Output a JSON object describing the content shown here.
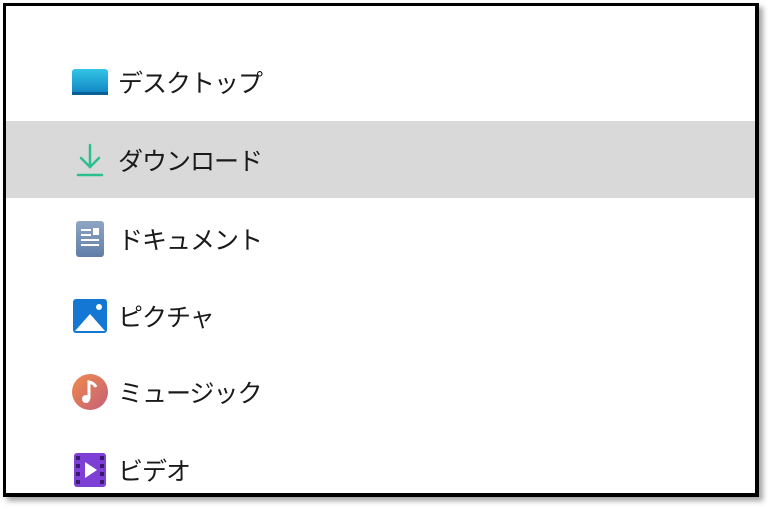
{
  "sidebar": {
    "items": [
      {
        "label": "デスクトップ",
        "icon": "desktop-icon",
        "selected": false
      },
      {
        "label": "ダウンロード",
        "icon": "download-icon",
        "selected": true
      },
      {
        "label": "ドキュメント",
        "icon": "document-icon",
        "selected": false
      },
      {
        "label": "ピクチャ",
        "icon": "picture-icon",
        "selected": false
      },
      {
        "label": "ミュージック",
        "icon": "music-icon",
        "selected": false
      },
      {
        "label": "ビデオ",
        "icon": "video-icon",
        "selected": false
      }
    ]
  },
  "colors": {
    "selected_bg": "#d9d9d9",
    "download_green": "#2bbf8f"
  }
}
